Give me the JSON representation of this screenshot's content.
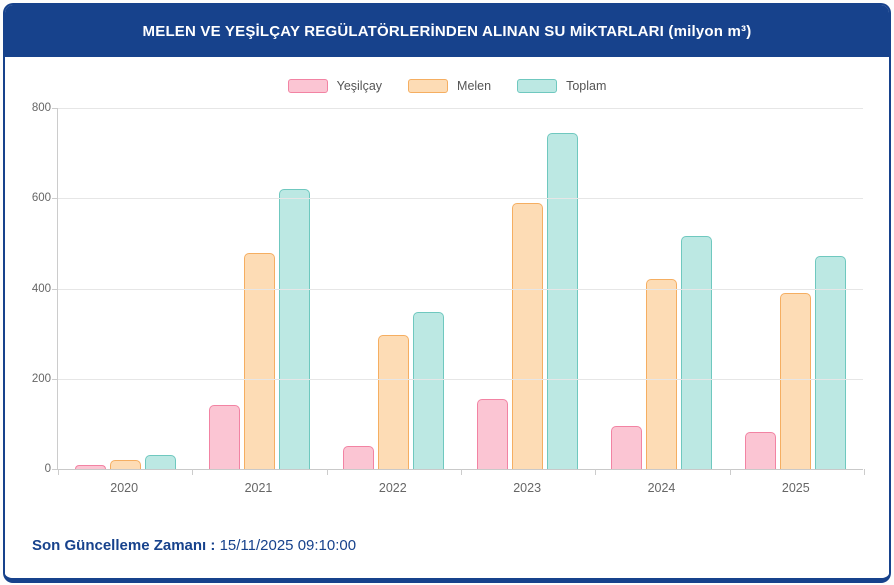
{
  "header": {
    "title": "MELEN VE YEŞİLÇAY REGÜLATÖRLERİNDEN ALINAN SU MİKTARLARI (milyon m³)"
  },
  "footer": {
    "label": "Son Güncelleme Zamanı",
    "separator": " : ",
    "value": "15/11/2025 09:10:00"
  },
  "colors": {
    "header_bg": "#17428C",
    "header_text": "#FFFFFF",
    "footer_text": "#17428C",
    "gridline": "#E6E6E6",
    "axis_line": "#CCCCCC",
    "tick_label": "#666666",
    "legend_label": "#555555"
  },
  "chart_data": {
    "type": "bar",
    "title": "MELEN VE YEŞİLÇAY REGÜLATÖRLERİNDEN ALINAN SU MİKTARLARI (milyon m³)",
    "categories": [
      "2020",
      "2021",
      "2022",
      "2023",
      "2024",
      "2025"
    ],
    "series": [
      {
        "name": "Yeşilçay",
        "fill": "#FBC5D3",
        "border": "#F283A3",
        "values": [
          10,
          142,
          50,
          155,
          96,
          82
        ]
      },
      {
        "name": "Melen",
        "fill": "#FDDCB5",
        "border": "#F5AE61",
        "values": [
          20,
          478,
          297,
          589,
          420,
          389
        ]
      },
      {
        "name": "Toplam",
        "fill": "#BCE8E3",
        "border": "#6FC8BF",
        "values": [
          30,
          620,
          347,
          744,
          516,
          471
        ]
      }
    ],
    "xlabel": "",
    "ylabel": "",
    "ylim": [
      0,
      800
    ],
    "yticks": [
      800,
      600,
      400,
      200,
      0
    ],
    "grid": true,
    "legend_position": "top"
  }
}
